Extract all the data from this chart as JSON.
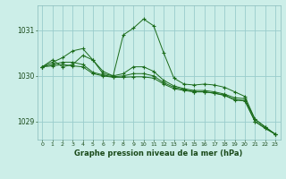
{
  "background_color": "#cceee8",
  "grid_color": "#99cccc",
  "line_color": "#1a6b1a",
  "title": "Graphe pression niveau de la mer (hPa)",
  "xlim": [
    -0.5,
    23.5
  ],
  "ylim": [
    1028.6,
    1031.55
  ],
  "yticks": [
    1029,
    1030,
    1031
  ],
  "xticks": [
    0,
    1,
    2,
    3,
    4,
    5,
    6,
    7,
    8,
    9,
    10,
    11,
    12,
    13,
    14,
    15,
    16,
    17,
    18,
    19,
    20,
    21,
    22,
    23
  ],
  "series": [
    [
      1030.2,
      1030.35,
      1030.2,
      1030.25,
      1030.45,
      1030.35,
      1030.05,
      1030.0,
      1030.9,
      1031.05,
      1031.25,
      1031.1,
      1030.5,
      1029.95,
      1029.82,
      1029.8,
      1029.82,
      1029.8,
      1029.75,
      1029.65,
      1029.55,
      1029.05,
      1028.88,
      1028.72
    ],
    [
      1030.2,
      1030.3,
      1030.4,
      1030.55,
      1030.6,
      1030.35,
      1030.1,
      1030.0,
      1030.05,
      1030.2,
      1030.2,
      1030.1,
      1029.9,
      1029.78,
      1029.72,
      1029.68,
      1029.68,
      1029.65,
      1029.6,
      1029.52,
      1029.5,
      1029.05,
      1028.88,
      1028.72
    ],
    [
      1030.2,
      1030.25,
      1030.3,
      1030.3,
      1030.25,
      1030.08,
      1030.02,
      1029.98,
      1030.0,
      1030.05,
      1030.05,
      1030.0,
      1029.85,
      1029.75,
      1029.7,
      1029.65,
      1029.65,
      1029.62,
      1029.58,
      1029.48,
      1029.46,
      1029.0,
      1028.85,
      1028.72
    ],
    [
      1030.2,
      1030.22,
      1030.25,
      1030.22,
      1030.2,
      1030.05,
      1030.0,
      1029.97,
      1029.97,
      1029.98,
      1029.98,
      1029.95,
      1029.82,
      1029.72,
      1029.68,
      1029.65,
      1029.65,
      1029.62,
      1029.57,
      1029.47,
      1029.45,
      1029.0,
      1028.85,
      1028.72
    ]
  ]
}
